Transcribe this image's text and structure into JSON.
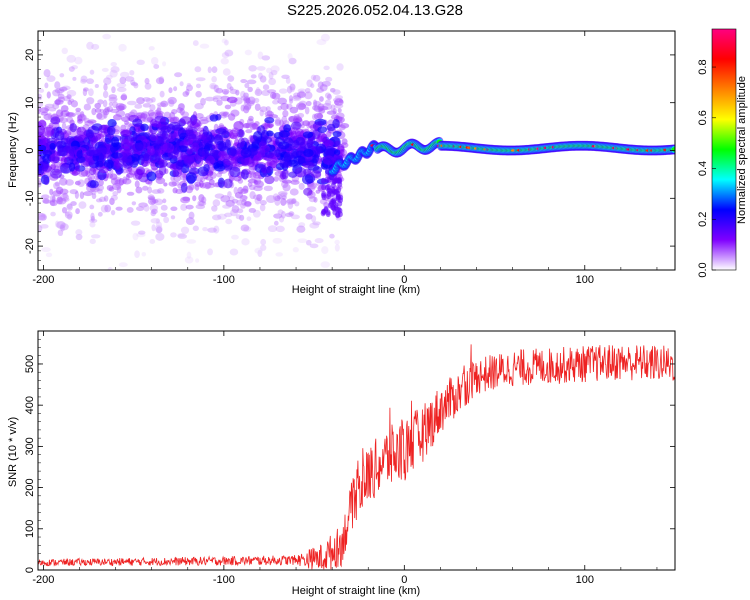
{
  "title": "S225.2026.052.04.13.G28",
  "chart_data": [
    {
      "type": "heatmap",
      "name": "spectrogram",
      "xlabel": "Height of straight line (km)",
      "ylabel": "Frequency (Hz)",
      "xlim": [
        -203,
        150
      ],
      "ylim": [
        -25,
        25
      ],
      "xticks": [
        -200,
        -100,
        0,
        100
      ],
      "yticks": [
        -20,
        -10,
        0,
        10,
        20
      ],
      "colorbar": {
        "label": "Normalized spectral amplitude",
        "range": [
          0.0,
          0.95
        ],
        "ticks": [
          0.0,
          0.2,
          0.4,
          0.6,
          0.8
        ],
        "tick_labels": [
          "0.0",
          "0.2",
          "0.4",
          "0.6",
          "0.8"
        ],
        "colors": [
          "#ffffff",
          "#7f00ff",
          "#0000ff",
          "#00ffff",
          "#00ff00",
          "#ffff00",
          "#ff8000",
          "#ff0000",
          "#ff0080"
        ]
      },
      "regions": [
        {
          "x_range": [
            -203,
            -40
          ],
          "freq_center": 0,
          "freq_spread": 25,
          "amplitude": 0.1,
          "note": "noisy scattered"
        },
        {
          "x_range": [
            -40,
            -15
          ],
          "freq_center_start": -4,
          "freq_center_end": 1,
          "amplitude": 0.3
        },
        {
          "x_range": [
            -15,
            150
          ],
          "freq_center": 0.5,
          "bandwidth": 2.5,
          "amplitude": 0.5,
          "peak_amplitude": 0.9
        }
      ]
    },
    {
      "type": "line",
      "name": "snr",
      "xlabel": "Height of straight line (km)",
      "ylabel": "SNR (10 * v/v)",
      "xlim": [
        -203,
        150
      ],
      "ylim": [
        0,
        580
      ],
      "xticks": [
        -200,
        -100,
        0,
        100
      ],
      "yticks": [
        0,
        100,
        200,
        300,
        400,
        500
      ],
      "color": "#ee2222",
      "trend": {
        "x": [
          -203,
          -150,
          -100,
          -60,
          -45,
          -35,
          -28,
          -20,
          -10,
          0,
          10,
          20,
          30,
          40,
          60,
          80,
          100,
          120,
          150
        ],
        "y": [
          18,
          20,
          22,
          24,
          30,
          60,
          170,
          230,
          270,
          290,
          330,
          390,
          430,
          470,
          490,
          495,
          500,
          505,
          500
        ]
      },
      "noise_amplitude": {
        "x": [
          -203,
          -60,
          -40,
          -20,
          0,
          20,
          40,
          150
        ],
        "y": [
          8,
          12,
          45,
          70,
          80,
          60,
          45,
          45
        ]
      }
    }
  ]
}
